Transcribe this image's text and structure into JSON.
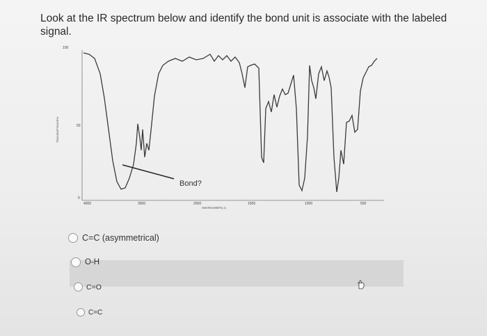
{
  "question": {
    "text": "Look at the IR spectrum below and identify the bond unit is associate with the labeled signal."
  },
  "figure": {
    "y_top_label": "100",
    "y_mid_label": "50",
    "y_bottom_label": "0",
    "y_axis_label": "TRANSMITTANCE%",
    "x_tick_labels": [
      "4000",
      "3000",
      "2000",
      "1500",
      "1000",
      "500"
    ],
    "x_axis_label": "WAVENUMBER(-1)",
    "annotation": "Bond?"
  },
  "options": [
    {
      "label": "C=C (asymmetrical)"
    },
    {
      "label": "O-H"
    },
    {
      "label": "C=O"
    },
    {
      "label": "C=C"
    }
  ],
  "colors": {
    "text": "#2a2a2a",
    "spectrum_line": "#3a3a3a",
    "highlight": "#d6d6d6"
  }
}
